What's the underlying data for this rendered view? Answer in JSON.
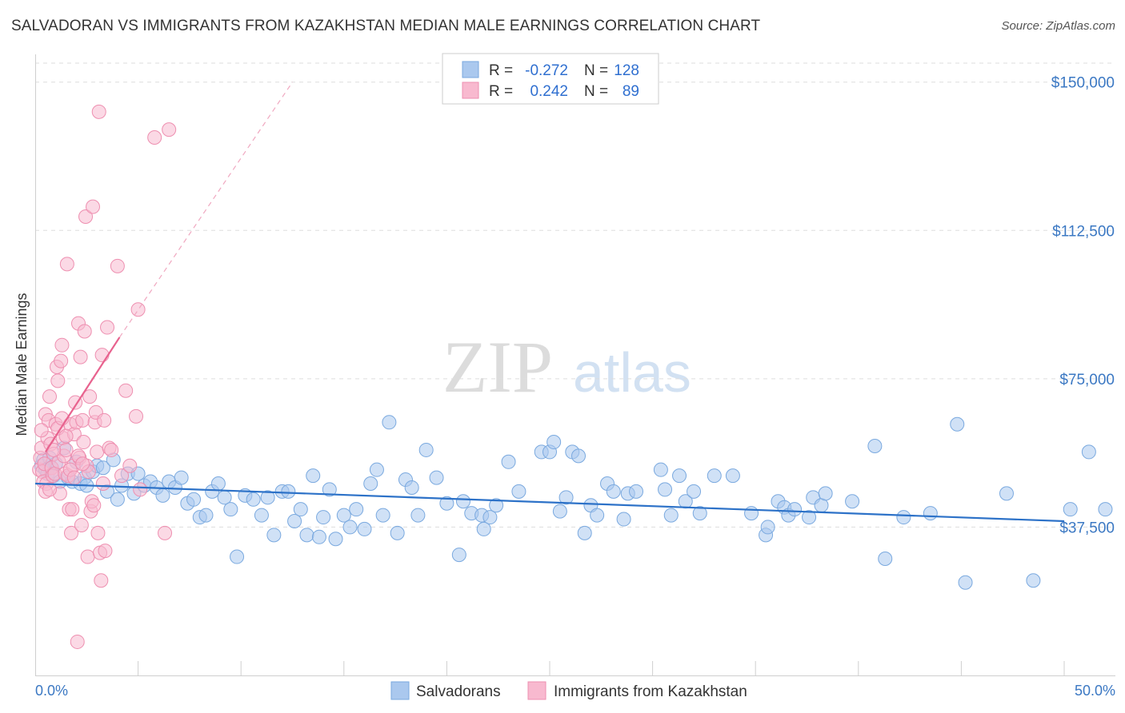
{
  "title": "SALVADORAN VS IMMIGRANTS FROM KAZAKHSTAN MEDIAN MALE EARNINGS CORRELATION CHART",
  "source": "Source: ZipAtlas.com",
  "watermark": {
    "zip": "ZIP",
    "atlas": "atlas"
  },
  "colors": {
    "blue_fill": "#aac8ee",
    "blue_stroke": "#7aa9df",
    "blue_line": "#2d72c8",
    "pink_fill": "#f8b9cf",
    "pink_stroke": "#ee8fb0",
    "pink_line": "#e8628e",
    "tick_text": "#3b78c3",
    "grid": "#dddddd"
  },
  "legend": {
    "rows": [
      {
        "r_label": "R =",
        "r_value": "-0.272",
        "n_label": "N =",
        "n_value": "128"
      },
      {
        "r_label": "R =",
        "r_value": "0.242",
        "n_label": "N =",
        "n_value": "89"
      }
    ]
  },
  "chart_data": {
    "type": "scatter",
    "ylabel": "Median Male Earnings",
    "xlim": [
      0,
      50
    ],
    "ylim": [
      0,
      155000
    ],
    "x_tick_labels": [
      "0.0%",
      "50.0%"
    ],
    "y_ticks": [
      {
        "value": 37500,
        "label": "$37,500"
      },
      {
        "value": 75000,
        "label": "$75,000"
      },
      {
        "value": 112500,
        "label": "$112,500"
      },
      {
        "value": 150000,
        "label": "$150,000"
      }
    ],
    "grid": true,
    "legend_position": "top-center",
    "series": [
      {
        "name": "Salvadorans",
        "color": "#aac8ee",
        "trend": {
          "x": [
            0,
            50
          ],
          "y": [
            48500,
            39000
          ]
        },
        "points": [
          [
            0.3,
            53000
          ],
          [
            0.4,
            54500
          ],
          [
            0.5,
            52000
          ],
          [
            0.6,
            51000
          ],
          [
            0.7,
            55000
          ],
          [
            0.8,
            52500
          ],
          [
            0.9,
            50500
          ],
          [
            1.0,
            53500
          ],
          [
            1.2,
            49000
          ],
          [
            1.4,
            57500
          ],
          [
            1.6,
            50000
          ],
          [
            1.8,
            49000
          ],
          [
            2.0,
            54000
          ],
          [
            2.2,
            48500
          ],
          [
            2.4,
            50000
          ],
          [
            2.5,
            48000
          ],
          [
            2.8,
            51500
          ],
          [
            3.0,
            53000
          ],
          [
            3.3,
            52500
          ],
          [
            3.5,
            46500
          ],
          [
            3.8,
            54500
          ],
          [
            4.0,
            44500
          ],
          [
            4.2,
            48000
          ],
          [
            4.5,
            51000
          ],
          [
            4.8,
            46000
          ],
          [
            5.0,
            51000
          ],
          [
            5.3,
            48000
          ],
          [
            5.6,
            49000
          ],
          [
            5.9,
            47500
          ],
          [
            6.2,
            45500
          ],
          [
            6.5,
            49000
          ],
          [
            6.8,
            47500
          ],
          [
            7.1,
            50000
          ],
          [
            7.4,
            43500
          ],
          [
            7.7,
            44500
          ],
          [
            8.0,
            40000
          ],
          [
            8.3,
            40500
          ],
          [
            8.6,
            46500
          ],
          [
            8.9,
            48500
          ],
          [
            9.2,
            45000
          ],
          [
            9.5,
            42000
          ],
          [
            9.8,
            30000
          ],
          [
            10.2,
            45500
          ],
          [
            10.6,
            44500
          ],
          [
            11.0,
            40500
          ],
          [
            11.3,
            45000
          ],
          [
            11.6,
            35500
          ],
          [
            12.0,
            46500
          ],
          [
            12.3,
            46500
          ],
          [
            12.6,
            39000
          ],
          [
            12.9,
            42000
          ],
          [
            13.2,
            35500
          ],
          [
            13.5,
            50500
          ],
          [
            13.8,
            35000
          ],
          [
            14.0,
            40000
          ],
          [
            14.3,
            47000
          ],
          [
            14.6,
            34500
          ],
          [
            15.0,
            40500
          ],
          [
            15.3,
            37500
          ],
          [
            15.6,
            42000
          ],
          [
            16.0,
            37000
          ],
          [
            16.3,
            48500
          ],
          [
            16.6,
            52000
          ],
          [
            16.9,
            40500
          ],
          [
            17.2,
            64000
          ],
          [
            17.6,
            36000
          ],
          [
            18.0,
            49500
          ],
          [
            18.3,
            47500
          ],
          [
            18.6,
            40500
          ],
          [
            19.0,
            57000
          ],
          [
            19.5,
            50000
          ],
          [
            20.0,
            43500
          ],
          [
            20.6,
            30500
          ],
          [
            20.8,
            44000
          ],
          [
            21.2,
            41000
          ],
          [
            21.7,
            40500
          ],
          [
            21.8,
            37000
          ],
          [
            22.1,
            40000
          ],
          [
            22.4,
            43000
          ],
          [
            23.0,
            54000
          ],
          [
            23.5,
            46500
          ],
          [
            24.6,
            56500
          ],
          [
            25.0,
            56500
          ],
          [
            25.2,
            59000
          ],
          [
            25.5,
            41500
          ],
          [
            25.8,
            45000
          ],
          [
            26.1,
            56500
          ],
          [
            26.4,
            55500
          ],
          [
            26.7,
            36000
          ],
          [
            27.0,
            43000
          ],
          [
            27.3,
            40500
          ],
          [
            27.8,
            48500
          ],
          [
            28.1,
            46500
          ],
          [
            28.6,
            39500
          ],
          [
            28.8,
            46000
          ],
          [
            29.2,
            46500
          ],
          [
            30.4,
            52000
          ],
          [
            30.6,
            47000
          ],
          [
            30.9,
            40500
          ],
          [
            31.3,
            50500
          ],
          [
            31.6,
            44000
          ],
          [
            32.0,
            46500
          ],
          [
            32.3,
            41000
          ],
          [
            33.0,
            50500
          ],
          [
            33.9,
            50500
          ],
          [
            34.8,
            41000
          ],
          [
            35.5,
            35500
          ],
          [
            35.6,
            37500
          ],
          [
            36.1,
            44000
          ],
          [
            36.4,
            42500
          ],
          [
            36.6,
            40500
          ],
          [
            36.9,
            42000
          ],
          [
            37.6,
            40000
          ],
          [
            37.8,
            45000
          ],
          [
            38.2,
            43000
          ],
          [
            38.4,
            46000
          ],
          [
            39.7,
            44000
          ],
          [
            40.8,
            58000
          ],
          [
            41.3,
            29500
          ],
          [
            42.2,
            40000
          ],
          [
            43.5,
            41000
          ],
          [
            44.8,
            63500
          ],
          [
            45.2,
            23500
          ],
          [
            47.2,
            46000
          ],
          [
            48.5,
            24000
          ],
          [
            50.3,
            42000
          ],
          [
            51.2,
            56500
          ],
          [
            52.0,
            42000
          ]
        ]
      },
      {
        "name": "Immigrants from Kazakhstan",
        "color": "#f8b9cf",
        "trend": {
          "x": [
            0.5,
            4.1
          ],
          "y": [
            56500,
            85500
          ],
          "extended": {
            "x": [
              4.1,
              12.5
            ],
            "y": [
              85500,
              150000
            ]
          }
        },
        "points": [
          [
            0.2,
            52000
          ],
          [
            0.25,
            55000
          ],
          [
            0.3,
            57500
          ],
          [
            0.35,
            51500
          ],
          [
            0.4,
            49000
          ],
          [
            0.45,
            53500
          ],
          [
            0.5,
            66000
          ],
          [
            0.55,
            48500
          ],
          [
            0.6,
            60000
          ],
          [
            0.65,
            64500
          ],
          [
            0.7,
            70500
          ],
          [
            0.75,
            58500
          ],
          [
            0.8,
            52500
          ],
          [
            0.85,
            50500
          ],
          [
            0.9,
            56000
          ],
          [
            0.95,
            51000
          ],
          [
            1.0,
            63500
          ],
          [
            1.05,
            78000
          ],
          [
            1.1,
            74500
          ],
          [
            1.15,
            54000
          ],
          [
            1.2,
            46000
          ],
          [
            1.25,
            79500
          ],
          [
            1.3,
            83500
          ],
          [
            1.35,
            60000
          ],
          [
            1.4,
            55500
          ],
          [
            1.45,
            51000
          ],
          [
            1.5,
            57000
          ],
          [
            1.55,
            104000
          ],
          [
            1.6,
            50500
          ],
          [
            1.65,
            42000
          ],
          [
            1.7,
            63500
          ],
          [
            1.75,
            36000
          ],
          [
            1.8,
            42000
          ],
          [
            1.85,
            53000
          ],
          [
            1.9,
            61000
          ],
          [
            1.95,
            69000
          ],
          [
            2.0,
            64000
          ],
          [
            2.05,
            8500
          ],
          [
            2.1,
            89000
          ],
          [
            2.15,
            55000
          ],
          [
            2.2,
            80500
          ],
          [
            2.25,
            38000
          ],
          [
            2.3,
            64500
          ],
          [
            2.35,
            59000
          ],
          [
            2.4,
            87000
          ],
          [
            2.45,
            116000
          ],
          [
            2.5,
            53000
          ],
          [
            2.55,
            30000
          ],
          [
            2.6,
            51500
          ],
          [
            2.65,
            70500
          ],
          [
            2.7,
            41500
          ],
          [
            2.75,
            44000
          ],
          [
            2.8,
            118500
          ],
          [
            2.85,
            43000
          ],
          [
            2.9,
            64000
          ],
          [
            2.95,
            66500
          ],
          [
            3.0,
            56500
          ],
          [
            3.05,
            36000
          ],
          [
            3.1,
            142500
          ],
          [
            3.15,
            31000
          ],
          [
            3.2,
            24000
          ],
          [
            3.25,
            81000
          ],
          [
            3.3,
            48500
          ],
          [
            3.35,
            64500
          ],
          [
            3.4,
            31500
          ],
          [
            3.5,
            88000
          ],
          [
            3.6,
            57500
          ],
          [
            3.7,
            57000
          ],
          [
            4.0,
            103500
          ],
          [
            4.2,
            50500
          ],
          [
            4.4,
            72000
          ],
          [
            4.6,
            53000
          ],
          [
            4.9,
            65500
          ],
          [
            5.0,
            92500
          ],
          [
            5.1,
            47000
          ],
          [
            5.8,
            136000
          ],
          [
            6.3,
            36000
          ],
          [
            6.5,
            138000
          ],
          [
            0.3,
            62000
          ],
          [
            0.5,
            46500
          ],
          [
            0.7,
            47000
          ],
          [
            0.9,
            57000
          ],
          [
            1.1,
            62500
          ],
          [
            1.3,
            65000
          ],
          [
            1.5,
            60500
          ],
          [
            1.7,
            52000
          ],
          [
            1.9,
            50000
          ],
          [
            2.1,
            55500
          ],
          [
            2.3,
            53500
          ]
        ]
      }
    ]
  }
}
